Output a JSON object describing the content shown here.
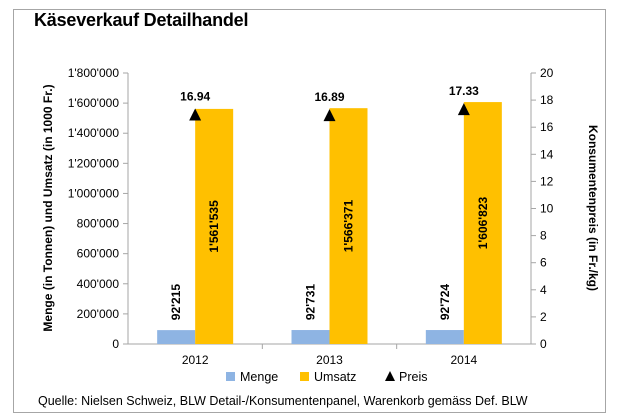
{
  "title": "Käseverkauf Detailhandel",
  "source": "Quelle: Nielsen Schweiz, BLW Detail-/Konsumentenpanel, Warenkorb gemäss Def. BLW",
  "colors": {
    "menge": "#8eb4e3",
    "umsatz": "#ffc000",
    "preis": "#000000",
    "axis": "#a6a6a6",
    "frame": "#a6a6a6"
  },
  "chart_data": {
    "type": "bar",
    "categories": [
      "2012",
      "2013",
      "2014"
    ],
    "series": [
      {
        "name": "Menge",
        "axis": "left",
        "values": [
          92215,
          92731,
          92724
        ],
        "labels": [
          "92'215",
          "92'731",
          "92'724"
        ]
      },
      {
        "name": "Umsatz",
        "axis": "left",
        "values": [
          1561535,
          1566371,
          1606823
        ],
        "labels": [
          "1'561'535",
          "1'566'371",
          "1'606'823"
        ]
      },
      {
        "name": "Preis",
        "axis": "right",
        "type": "marker",
        "values": [
          16.94,
          16.89,
          17.33
        ],
        "labels": [
          "16.94",
          "16.89",
          "17.33"
        ]
      }
    ],
    "title": "Käseverkauf Detailhandel",
    "ylabel": "Menge (in Tonnen) und Umsatz (in 1000 Fr.)",
    "y2label": "Konsumentenpreis (in Fr./kg)",
    "ylim": [
      0,
      1800000
    ],
    "y2lim": [
      0,
      20
    ],
    "yticks": [
      "0",
      "200'000",
      "400'000",
      "600'000",
      "800'000",
      "1'000'000",
      "1'200'000",
      "1'400'000",
      "1'600'000",
      "1'800'000"
    ],
    "y2ticks": [
      "0",
      "2",
      "4",
      "6",
      "8",
      "10",
      "12",
      "14",
      "16",
      "18",
      "20"
    ],
    "legend": [
      "Menge",
      "Umsatz",
      "Preis"
    ],
    "legend_position": "bottom",
    "grid": false
  }
}
